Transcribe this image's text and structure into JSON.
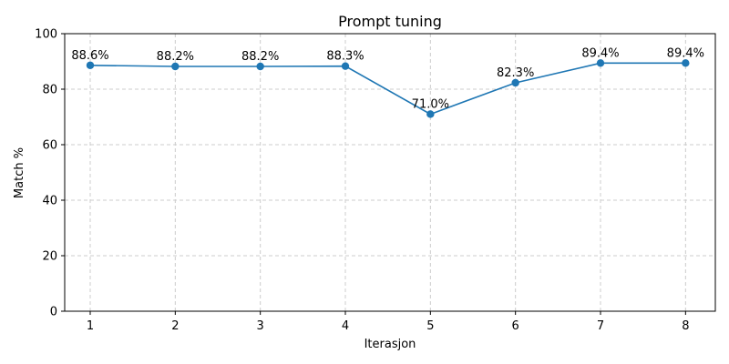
{
  "chart_data": {
    "type": "line",
    "title": "Prompt tuning",
    "xlabel": "Iterasjon",
    "ylabel": "Match %",
    "x": [
      1,
      2,
      3,
      4,
      5,
      6,
      7,
      8
    ],
    "series": [
      {
        "values": [
          88.6,
          88.2,
          88.2,
          88.3,
          71.0,
          82.3,
          89.4,
          89.4
        ],
        "data_labels": [
          "88.6%",
          "88.2%",
          "88.2%",
          "88.3%",
          "71.0%",
          "82.3%",
          "89.4%",
          "89.4%"
        ],
        "color": "#1f77b4",
        "marker": "circle"
      }
    ],
    "xlim": [
      0.7,
      8.35
    ],
    "ylim": [
      0,
      100
    ],
    "xticks": [
      "1",
      "2",
      "3",
      "4",
      "5",
      "6",
      "7",
      "8"
    ],
    "yticks": [
      "0",
      "20",
      "40",
      "60",
      "80",
      "100"
    ],
    "grid": true,
    "legend": "none"
  }
}
